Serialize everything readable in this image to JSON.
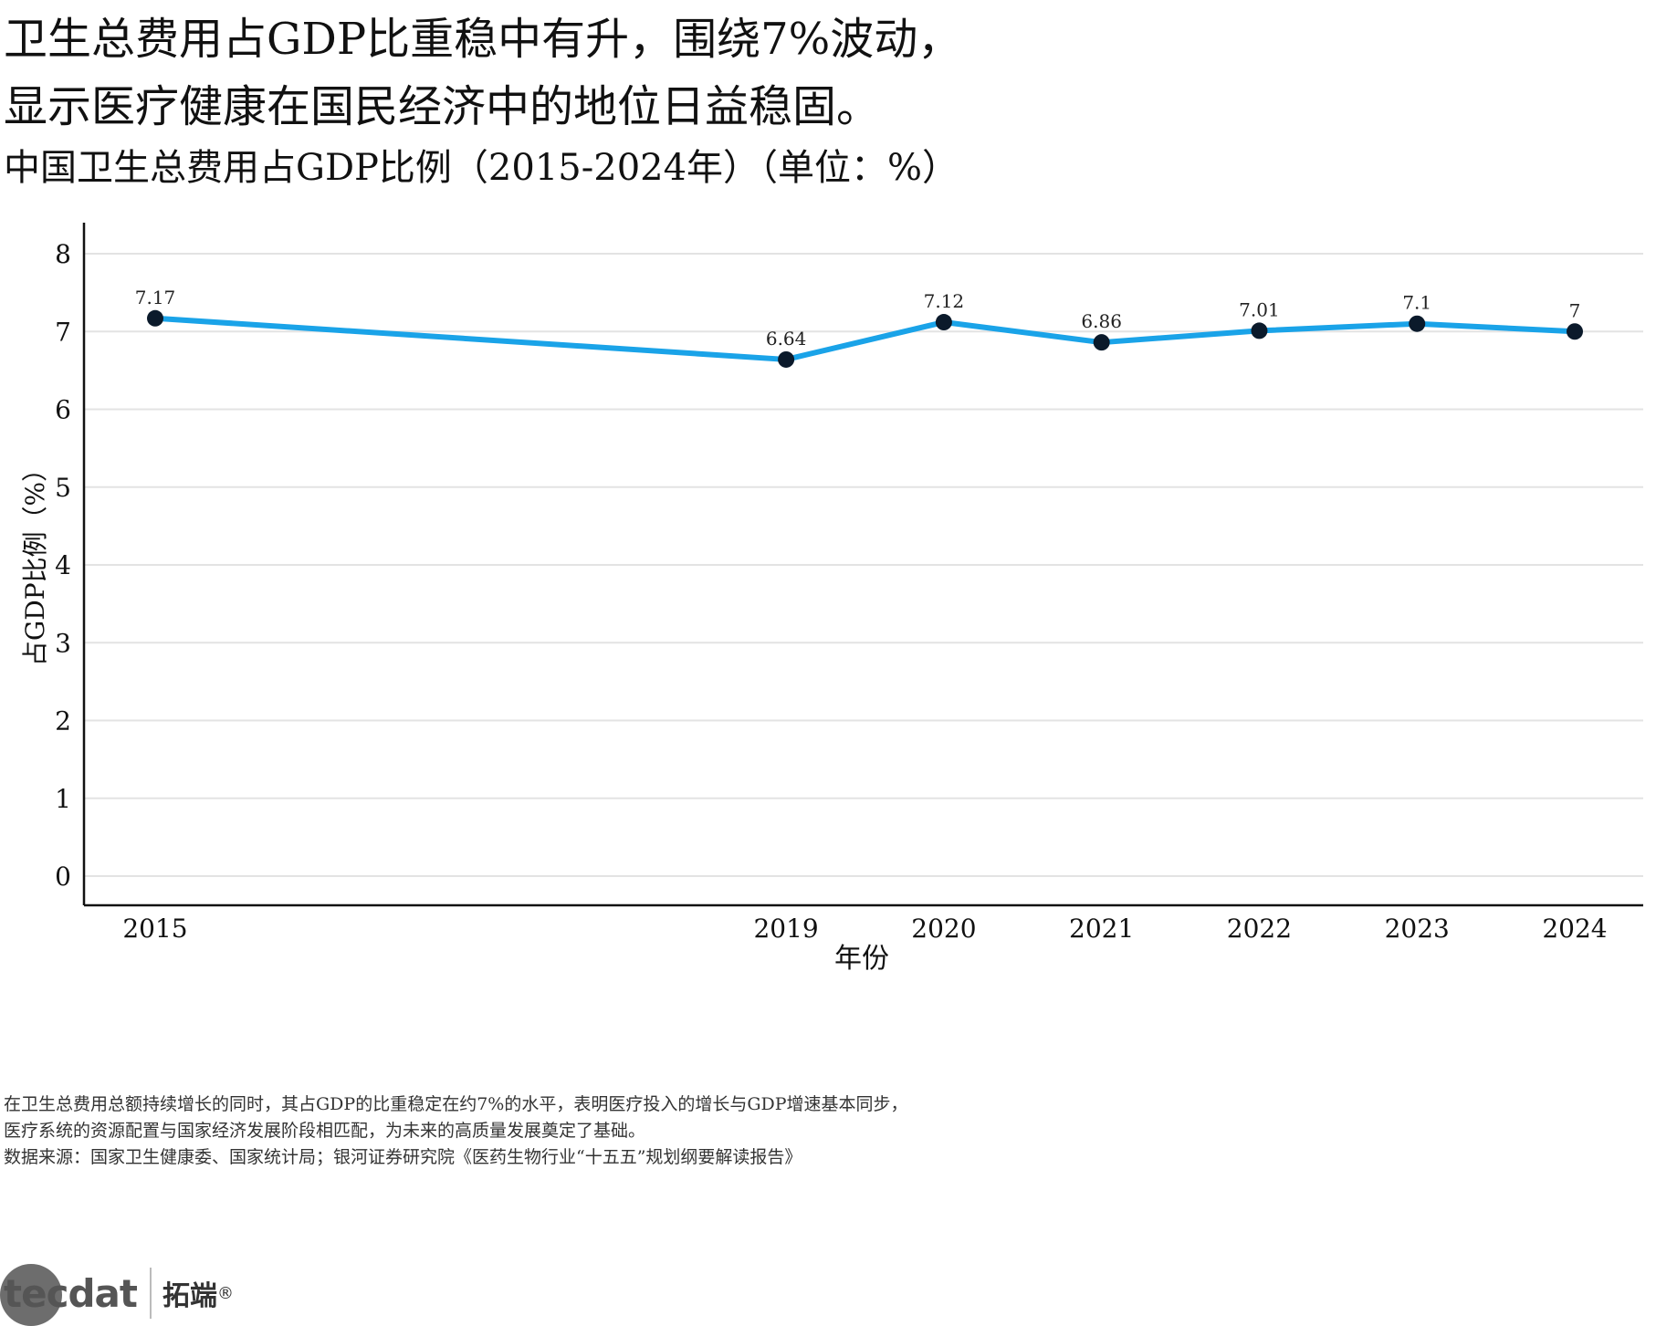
{
  "headline": {
    "line1": "卫生总费用占GDP比重稳中有升，围绕7%波动，",
    "line2": "显示医疗健康在国民经济中的地位日益稳固。"
  },
  "subtitle": "中国卫生总费用占GDP比例（2015-2024年）（单位：%）",
  "chart_data": {
    "type": "line",
    "x": [
      2015,
      2019,
      2020,
      2021,
      2022,
      2023,
      2024
    ],
    "series": [
      {
        "values": [
          7.17,
          6.64,
          7.12,
          6.86,
          7.01,
          7.1,
          7
        ]
      }
    ],
    "data_labels": [
      "7.17",
      "6.64",
      "7.12",
      "6.86",
      "7.01",
      "7.1",
      "7"
    ],
    "xlabel": "年份",
    "ylabel": "占GDP比例（%）",
    "ylim": [
      0,
      8
    ],
    "yticks": [
      0,
      1,
      2,
      3,
      4,
      5,
      6,
      7,
      8
    ],
    "xticks": [
      "2015",
      "2019",
      "2020",
      "2021",
      "2022",
      "2023",
      "2024"
    ],
    "grid": "horizontal",
    "line_color": "#1aa3e8",
    "marker_color": "#0b1a2b"
  },
  "footnote": {
    "line1": "在卫生总费用总额持续增长的同时，其占GDP的比重稳定在约7%的水平，表明医疗投入的增长与GDP增速基本同步，",
    "line2": "医疗系统的资源配置与国家经济发展阶段相匹配，为未来的高质量发展奠定了基础。",
    "source": "数据来源：国家卫生健康委、国家统计局；银河证券研究院《医药生物行业“十五五”规划纲要解读报告》"
  },
  "brand": {
    "logo_text": "tecdat",
    "name": "拓端",
    "mark": "®"
  }
}
